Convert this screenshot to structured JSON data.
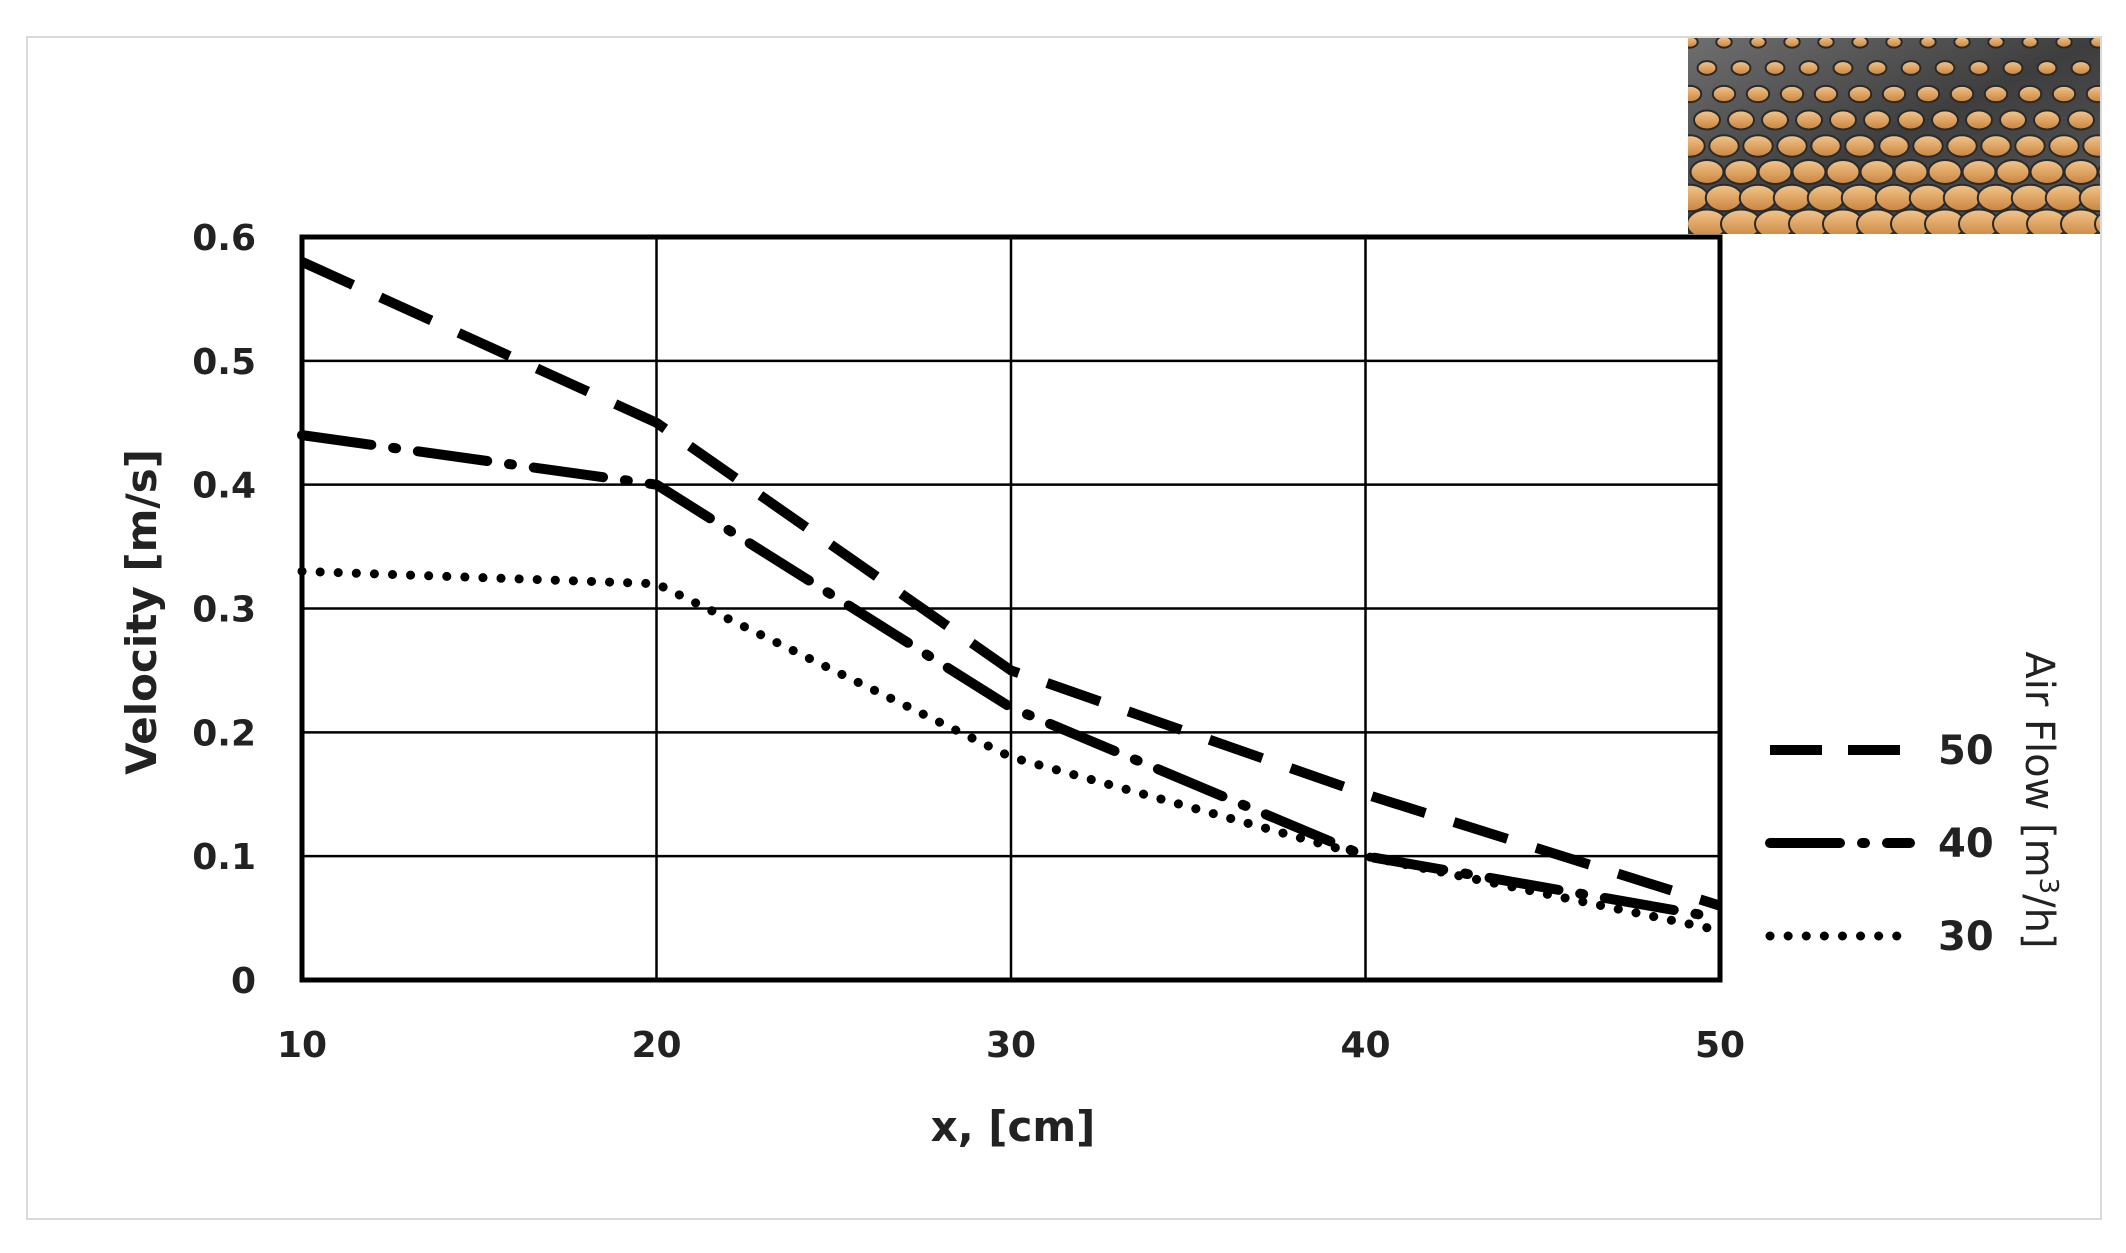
{
  "chart_data": {
    "type": "line",
    "xlabel": "x, [cm]",
    "ylabel": "Velocity [m/s]",
    "xlim": [
      10,
      50
    ],
    "ylim": [
      0,
      0.6
    ],
    "xticks": [
      "10",
      "20",
      "30",
      "40",
      "50"
    ],
    "yticks": [
      "0",
      "0.1",
      "0.2",
      "0.3",
      "0.4",
      "0.5",
      "0.6"
    ],
    "grid": true,
    "legend": {
      "placement": "right",
      "title_main": "Air Flow  [m",
      "title_sup": "3",
      "title_end": "/h]"
    },
    "series": [
      {
        "name": "50",
        "style": "dashed",
        "x": [
          10,
          20,
          30,
          40,
          50
        ],
        "y": [
          0.58,
          0.45,
          0.25,
          0.15,
          0.06
        ]
      },
      {
        "name": "40",
        "style": "dashdot",
        "x": [
          10,
          20,
          30,
          40,
          50
        ],
        "y": [
          0.44,
          0.4,
          0.22,
          0.1,
          0.05
        ]
      },
      {
        "name": "30",
        "style": "dotted",
        "x": [
          10,
          20,
          30,
          40,
          50
        ],
        "y": [
          0.33,
          0.32,
          0.18,
          0.1,
          0.04
        ]
      }
    ],
    "photo_icon": "perforated-metal-sheet"
  }
}
